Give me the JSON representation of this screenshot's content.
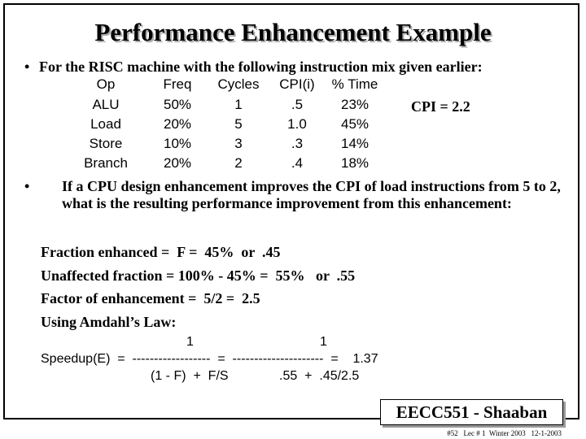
{
  "title": "Performance Enhancement Example",
  "bullets": [
    "For the RISC machine with the following instruction mix given earlier:",
    "If a CPU design enhancement improves the CPI of load instructions from 5 to 2,  what is the resulting performance improvement from this enhancement:"
  ],
  "table": {
    "header": [
      "Op",
      "Freq",
      "Cycles",
      "CPI(i)",
      "% Time"
    ],
    "rows": [
      [
        "ALU",
        "50%",
        "1",
        ".5",
        "23%"
      ],
      [
        "Load",
        "20%",
        "5",
        "1.0",
        "45%"
      ],
      [
        "Store",
        "10%",
        "3",
        ".3",
        "14%"
      ],
      [
        "Branch",
        "20%",
        "2",
        ".4",
        "18%"
      ]
    ]
  },
  "cpi_note": "CPI = 2.2",
  "lines": [
    "Fraction enhanced =  F =  45%  or  .45",
    "Unaffected fraction = 100% - 45% =  55%   or  .55",
    "Factor of enhancement =  5/2 =  2.5",
    "Using Amdahl’s Law:"
  ],
  "formula": {
    "num1": "1",
    "num2": "1",
    "main": "Speedup(E)  =  ------------------  =  ---------------------  =    1.37",
    "den1": "(1 - F)  +  F/S",
    "den2": ".55  +  .45/2.5"
  },
  "footer": {
    "label": "EECC551 - Shaaban",
    "note": "#52   Lec # 1  Winter 2003   12-1-2003"
  }
}
